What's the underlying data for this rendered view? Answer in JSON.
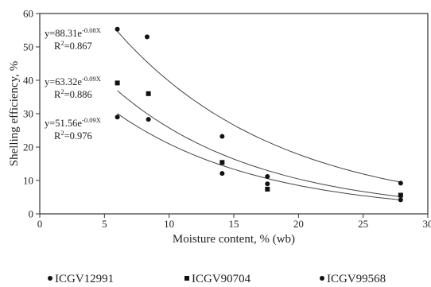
{
  "chart_data": {
    "type": "scatter",
    "xlabel": "Moisture content, % (wb)",
    "ylabel": "Shelling efficiency, %",
    "xlim": [
      0,
      30
    ],
    "ylim": [
      0,
      60
    ],
    "x_ticks": [
      0,
      5,
      10,
      15,
      20,
      25,
      30
    ],
    "y_ticks": [
      0,
      10,
      20,
      30,
      40,
      50,
      60
    ],
    "grid": false,
    "legend": "bottom",
    "series": [
      {
        "name": "ICGV12991",
        "marker": "circle",
        "points": [
          [
            6.0,
            55.3
          ],
          [
            8.3,
            53.0
          ],
          [
            14.1,
            23.2
          ],
          [
            17.6,
            11.2
          ],
          [
            27.9,
            9.2
          ]
        ],
        "fit": {
          "a": 88.31,
          "b": -0.08,
          "equation": "y=88.31e",
          "exponent": "-0.08X",
          "r2_prefix": "R",
          "r2_value": "=0.867"
        }
      },
      {
        "name": "ICGV90704",
        "marker": "square",
        "points": [
          [
            6.0,
            39.2
          ],
          [
            8.4,
            36.0
          ],
          [
            14.1,
            15.4
          ],
          [
            17.6,
            7.4
          ],
          [
            27.9,
            5.6
          ]
        ],
        "fit": {
          "a": 63.32,
          "b": -0.09,
          "equation": "y=63.32e",
          "exponent": "-0.09X",
          "r2_prefix": "R",
          "r2_value": "=0.886"
        }
      },
      {
        "name": "ICGV99568",
        "marker": "circle",
        "points": [
          [
            6.0,
            29.0
          ],
          [
            8.4,
            28.3
          ],
          [
            14.1,
            12.1
          ],
          [
            17.6,
            9.0
          ],
          [
            27.9,
            4.2
          ]
        ],
        "fit": {
          "a": 51.56,
          "b": -0.09,
          "equation": "y=51.56e",
          "exponent": "-0.09X",
          "r2_prefix": "R",
          "r2_value": "=0.976"
        }
      }
    ],
    "legend_entries": [
      "ICGV12991",
      "ICGV90704",
      "ICGV99568"
    ]
  }
}
